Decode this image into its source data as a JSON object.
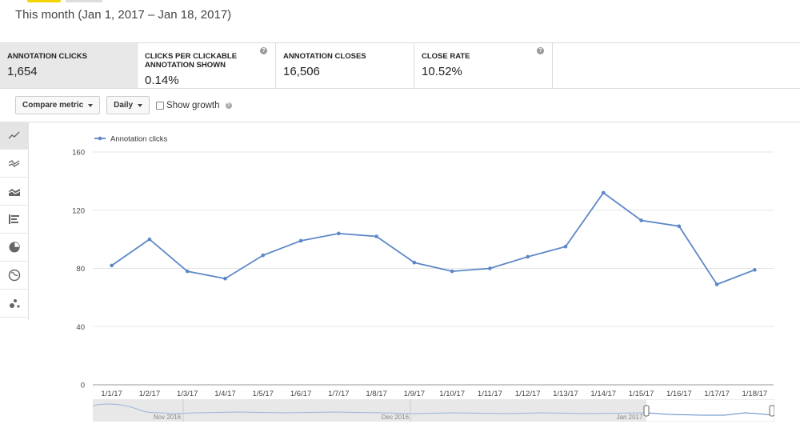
{
  "header": {
    "date_range": "This month (Jan 1, 2017 – Jan 18, 2017)"
  },
  "metrics": [
    {
      "title": "ANNOTATION CLICKS",
      "value": "1,654",
      "active": true,
      "help": false
    },
    {
      "title": "CLICKS PER CLICKABLE ANNOTATION SHOWN",
      "value": "0.14%",
      "active": false,
      "help": true
    },
    {
      "title": "ANNOTATION CLOSES",
      "value": "16,506",
      "active": false,
      "help": false
    },
    {
      "title": "CLOSE RATE",
      "value": "10.52%",
      "active": false,
      "help": true
    }
  ],
  "controls": {
    "compare_label": "Compare metric",
    "interval_label": "Daily",
    "growth_label": "Show growth"
  },
  "side_tools": [
    "line-chart-icon",
    "multiline-chart-icon",
    "stacked-area-icon",
    "bar-chart-icon",
    "pie-chart-icon",
    "globe-icon",
    "bubble-chart-icon"
  ],
  "colors": {
    "series": "#5b87c7",
    "accent": "#f5d400"
  },
  "chart_data": {
    "type": "line",
    "title": "",
    "xlabel": "",
    "ylabel": "",
    "categories": [
      "1/1/17",
      "1/2/17",
      "1/3/17",
      "1/4/17",
      "1/5/17",
      "1/6/17",
      "1/7/17",
      "1/8/17",
      "1/9/17",
      "1/10/17",
      "1/11/17",
      "1/12/17",
      "1/13/17",
      "1/14/17",
      "1/15/17",
      "1/16/17",
      "1/17/17",
      "1/18/17"
    ],
    "series": [
      {
        "name": "Annotation clicks",
        "values": [
          82,
          100,
          78,
          73,
          89,
          99,
          104,
          102,
          84,
          78,
          80,
          88,
          95,
          132,
          113,
          109,
          69,
          79
        ]
      }
    ],
    "ylim": [
      0,
      160
    ],
    "yticks": [
      0,
      40,
      80,
      120,
      160
    ],
    "grid": true,
    "legend": "top-left"
  },
  "navigator": {
    "labels": [
      "Nov 2016",
      "Dec 2016",
      "Jan 2017"
    ]
  }
}
